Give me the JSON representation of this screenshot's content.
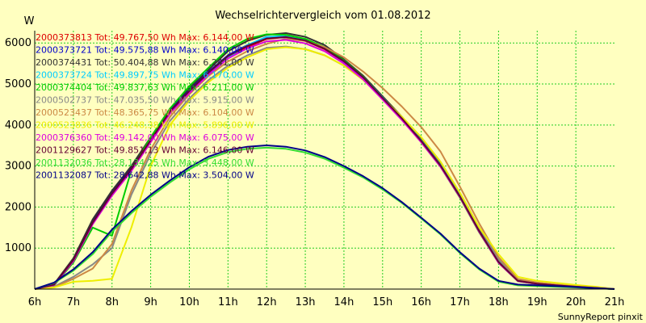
{
  "chart_data": {
    "type": "line",
    "title": "Wechselrichtervergleich vom 01.08.2012",
    "ylabel": "W",
    "xlabel": "",
    "footer": "SunnyReport pinxit",
    "x_ticks": [
      "6h",
      "7h",
      "8h",
      "9h",
      "10h",
      "11h",
      "12h",
      "13h",
      "14h",
      "15h",
      "16h",
      "17h",
      "18h",
      "19h",
      "20h",
      "21h"
    ],
    "y_ticks": [
      1000,
      2000,
      3000,
      4000,
      5000,
      6000
    ],
    "xlim": [
      6,
      21
    ],
    "ylim": [
      0,
      6300
    ],
    "grid": true,
    "legend_position": "top-left",
    "series": [
      {
        "label": "2000373813 Tot: 49.767,50 Wh Max: 6.144,00 W",
        "color": "#dd0000",
        "x": [
          6,
          6.5,
          7,
          7.5,
          8,
          8.5,
          9,
          9.5,
          10,
          10.5,
          11,
          11.5,
          12,
          12.5,
          13,
          13.5,
          14,
          14.5,
          15,
          15.5,
          16,
          16.5,
          17,
          17.5,
          18,
          18.5,
          19,
          19.5,
          20,
          20.5,
          21
        ],
        "y": [
          0,
          100,
          700,
          1600,
          2300,
          2900,
          3600,
          4300,
          4800,
          5250,
          5650,
          5900,
          6100,
          6144,
          6050,
          5850,
          5550,
          5150,
          4650,
          4150,
          3600,
          3000,
          2250,
          1400,
          650,
          200,
          130,
          90,
          60,
          30,
          0
        ]
      },
      {
        "label": "2000373721 Tot: 49.575,88 Wh Max: 6.140,00 W",
        "color": "#0000cc",
        "x": [
          6,
          6.5,
          7,
          7.5,
          8,
          8.5,
          9,
          9.5,
          10,
          10.5,
          11,
          11.5,
          12,
          12.5,
          13,
          13.5,
          14,
          14.5,
          15,
          15.5,
          16,
          16.5,
          17,
          17.5,
          18,
          18.5,
          19,
          19.5,
          20,
          20.5,
          21
        ],
        "y": [
          0,
          110,
          720,
          1650,
          2350,
          2950,
          3650,
          4350,
          4850,
          5300,
          5700,
          5950,
          6120,
          6140,
          6060,
          5860,
          5550,
          5150,
          4650,
          4150,
          3600,
          3000,
          2250,
          1400,
          650,
          200,
          130,
          90,
          60,
          30,
          0
        ]
      },
      {
        "label": "2000374431 Tot: 50.404,88 Wh Max: 6.241,00 W",
        "color": "#333333",
        "x": [
          6,
          6.5,
          7,
          7.5,
          8,
          8.5,
          9,
          9.5,
          10,
          10.5,
          11,
          11.5,
          12,
          12.5,
          13,
          13.5,
          14,
          14.5,
          15,
          15.5,
          16,
          16.5,
          17,
          17.5,
          18,
          18.5,
          19,
          19.5,
          20,
          20.5,
          21
        ],
        "y": [
          0,
          120,
          750,
          1700,
          2400,
          3000,
          3700,
          4400,
          4900,
          5350,
          5800,
          6050,
          6200,
          6241,
          6150,
          5950,
          5600,
          5200,
          4700,
          4200,
          3650,
          3050,
          2300,
          1450,
          680,
          210,
          140,
          95,
          65,
          35,
          0
        ]
      },
      {
        "label": "2000373724 Tot: 49.897,75 Wh Max: 6.170,00 W",
        "color": "#00ccff",
        "x": [
          6,
          6.5,
          7,
          7.5,
          8,
          8.5,
          9,
          9.5,
          10,
          10.5,
          11,
          11.5,
          12,
          12.5,
          13,
          13.5,
          14,
          14.5,
          15,
          15.5,
          16,
          16.5,
          17,
          17.5,
          18,
          18.5,
          19,
          19.5,
          20,
          20.5,
          21
        ],
        "y": [
          0,
          100,
          700,
          1600,
          2300,
          2900,
          3600,
          4300,
          4800,
          5250,
          5650,
          5950,
          6150,
          6170,
          6080,
          5880,
          5570,
          5170,
          4670,
          4170,
          3620,
          3020,
          2270,
          1410,
          660,
          200,
          130,
          90,
          60,
          30,
          0
        ]
      },
      {
        "label": "2000374404 Tot: 49.837,63 Wh Max: 6.211,00 W",
        "color": "#00cc00",
        "x": [
          6,
          6.5,
          7,
          7.5,
          8,
          8.5,
          9,
          9.5,
          10,
          10.5,
          11,
          11.5,
          12,
          12.5,
          13,
          13.5,
          14,
          14.5,
          15,
          15.5,
          16,
          16.5,
          17,
          17.5,
          18,
          18.5,
          19,
          19.5,
          20,
          20.5,
          21
        ],
        "y": [
          0,
          90,
          650,
          1500,
          1300,
          2900,
          3700,
          4400,
          4950,
          5400,
          5850,
          6100,
          6211,
          6200,
          6100,
          5900,
          5580,
          5170,
          4650,
          4150,
          3580,
          2980,
          2230,
          1380,
          640,
          190,
          120,
          85,
          55,
          25,
          0
        ]
      },
      {
        "label": "2000502737 Tot: 47.035,50 Wh Max: 5.915,00 W",
        "color": "#888888",
        "x": [
          6,
          6.5,
          7,
          7.5,
          8,
          8.5,
          9,
          9.5,
          10,
          10.5,
          11,
          11.5,
          12,
          12.5,
          13,
          13.5,
          14,
          14.5,
          15,
          15.5,
          16,
          16.5,
          17,
          17.5,
          18,
          18.5,
          19,
          19.5,
          20,
          20.5,
          21
        ],
        "y": [
          0,
          60,
          300,
          600,
          1000,
          2300,
          3300,
          4100,
          4650,
          5100,
          5450,
          5700,
          5880,
          5915,
          5850,
          5700,
          5450,
          5100,
          4650,
          4200,
          3700,
          3100,
          2350,
          1500,
          720,
          230,
          150,
          100,
          70,
          35,
          0
        ]
      },
      {
        "label": "2000523437 Tot: 48.365,75 Wh Max: 6.104,00 W",
        "color": "#cc8844",
        "x": [
          6,
          6.5,
          7,
          7.5,
          8,
          8.5,
          9,
          9.5,
          10,
          10.5,
          11,
          11.5,
          12,
          12.5,
          13,
          13.5,
          14,
          14.5,
          15,
          15.5,
          16,
          16.5,
          17,
          17.5,
          18,
          18.5,
          19,
          19.5,
          20,
          20.5,
          21
        ],
        "y": [
          0,
          50,
          250,
          500,
          1100,
          2400,
          3400,
          4200,
          4750,
          5200,
          5550,
          5800,
          5980,
          6104,
          6050,
          5900,
          5650,
          5300,
          4900,
          4450,
          3950,
          3350,
          2500,
          1600,
          780,
          250,
          160,
          110,
          75,
          40,
          0
        ]
      },
      {
        "label": "2000523836 Tot: 46.248,38 Wh Max: 5.896,00 W",
        "color": "#eeee00",
        "x": [
          6,
          6.5,
          7,
          7.5,
          8,
          8.5,
          9,
          9.5,
          10,
          10.5,
          11,
          11.5,
          12,
          12.5,
          13,
          13.5,
          14,
          14.5,
          15,
          15.5,
          16,
          16.5,
          17,
          17.5,
          18,
          18.5,
          19,
          19.5,
          20,
          20.5,
          21
        ],
        "y": [
          0,
          40,
          180,
          200,
          250,
          1500,
          3000,
          4000,
          4600,
          5050,
          5400,
          5650,
          5850,
          5896,
          5850,
          5700,
          5450,
          5100,
          4650,
          4200,
          3700,
          3100,
          2350,
          1500,
          850,
          300,
          200,
          150,
          100,
          60,
          0
        ]
      },
      {
        "label": "2000376360 Tot: 49.142,00 Wh Max: 6.075,00 W",
        "color": "#dd00dd",
        "x": [
          6,
          6.5,
          7,
          7.5,
          8,
          8.5,
          9,
          9.5,
          10,
          10.5,
          11,
          11.5,
          12,
          12.5,
          13,
          13.5,
          14,
          14.5,
          15,
          15.5,
          16,
          16.5,
          17,
          17.5,
          18,
          18.5,
          19,
          19.5,
          20,
          20.5,
          21
        ],
        "y": [
          0,
          100,
          680,
          1580,
          2280,
          2880,
          3580,
          4280,
          4780,
          5230,
          5620,
          5870,
          6040,
          6075,
          5990,
          5800,
          5500,
          5110,
          4620,
          4120,
          3580,
          2980,
          2240,
          1390,
          640,
          195,
          125,
          88,
          58,
          28,
          0
        ]
      },
      {
        "label": "2001129627 Tot: 49.851,13 Wh Max: 6.146,00 W",
        "color": "#660033",
        "x": [
          6,
          6.5,
          7,
          7.5,
          8,
          8.5,
          9,
          9.5,
          10,
          10.5,
          11,
          11.5,
          12,
          12.5,
          13,
          13.5,
          14,
          14.5,
          15,
          15.5,
          16,
          16.5,
          17,
          17.5,
          18,
          18.5,
          19,
          19.5,
          20,
          20.5,
          21
        ],
        "y": [
          0,
          110,
          710,
          1620,
          2330,
          2930,
          3630,
          4330,
          4830,
          5280,
          5680,
          5930,
          6110,
          6146,
          6060,
          5860,
          5560,
          5160,
          4660,
          4160,
          3610,
          3010,
          2260,
          1410,
          660,
          200,
          130,
          90,
          60,
          30,
          0
        ]
      },
      {
        "label": "2001132036 Tot: 28.134,25 Wh Max: 3.448,00 W",
        "color": "#33dd33",
        "x": [
          6,
          6.5,
          7,
          7.5,
          8,
          8.5,
          9,
          9.5,
          10,
          10.5,
          11,
          11.5,
          12,
          12.5,
          13,
          13.5,
          14,
          14.5,
          15,
          15.5,
          16,
          16.5,
          17,
          17.5,
          18,
          18.5,
          19,
          19.5,
          20,
          20.5,
          21
        ],
        "y": [
          0,
          150,
          450,
          850,
          1400,
          1850,
          2250,
          2600,
          2920,
          3180,
          3340,
          3420,
          3448,
          3420,
          3330,
          3180,
          2960,
          2720,
          2430,
          2100,
          1720,
          1330,
          880,
          480,
          180,
          90,
          70,
          55,
          40,
          20,
          0
        ]
      },
      {
        "label": "2001132087 Tot: 28.642,88 Wh Max: 3.504,00 W",
        "color": "#000088",
        "x": [
          6,
          6.5,
          7,
          7.5,
          8,
          8.5,
          9,
          9.5,
          10,
          10.5,
          11,
          11.5,
          12,
          12.5,
          13,
          13.5,
          14,
          14.5,
          15,
          15.5,
          16,
          16.5,
          17,
          17.5,
          18,
          18.5,
          19,
          19.5,
          20,
          20.5,
          21
        ],
        "y": [
          0,
          160,
          480,
          900,
          1450,
          1900,
          2300,
          2650,
          2970,
          3230,
          3390,
          3470,
          3504,
          3470,
          3380,
          3220,
          3000,
          2750,
          2460,
          2120,
          1740,
          1350,
          900,
          500,
          200,
          110,
          90,
          70,
          50,
          25,
          0
        ]
      }
    ]
  }
}
